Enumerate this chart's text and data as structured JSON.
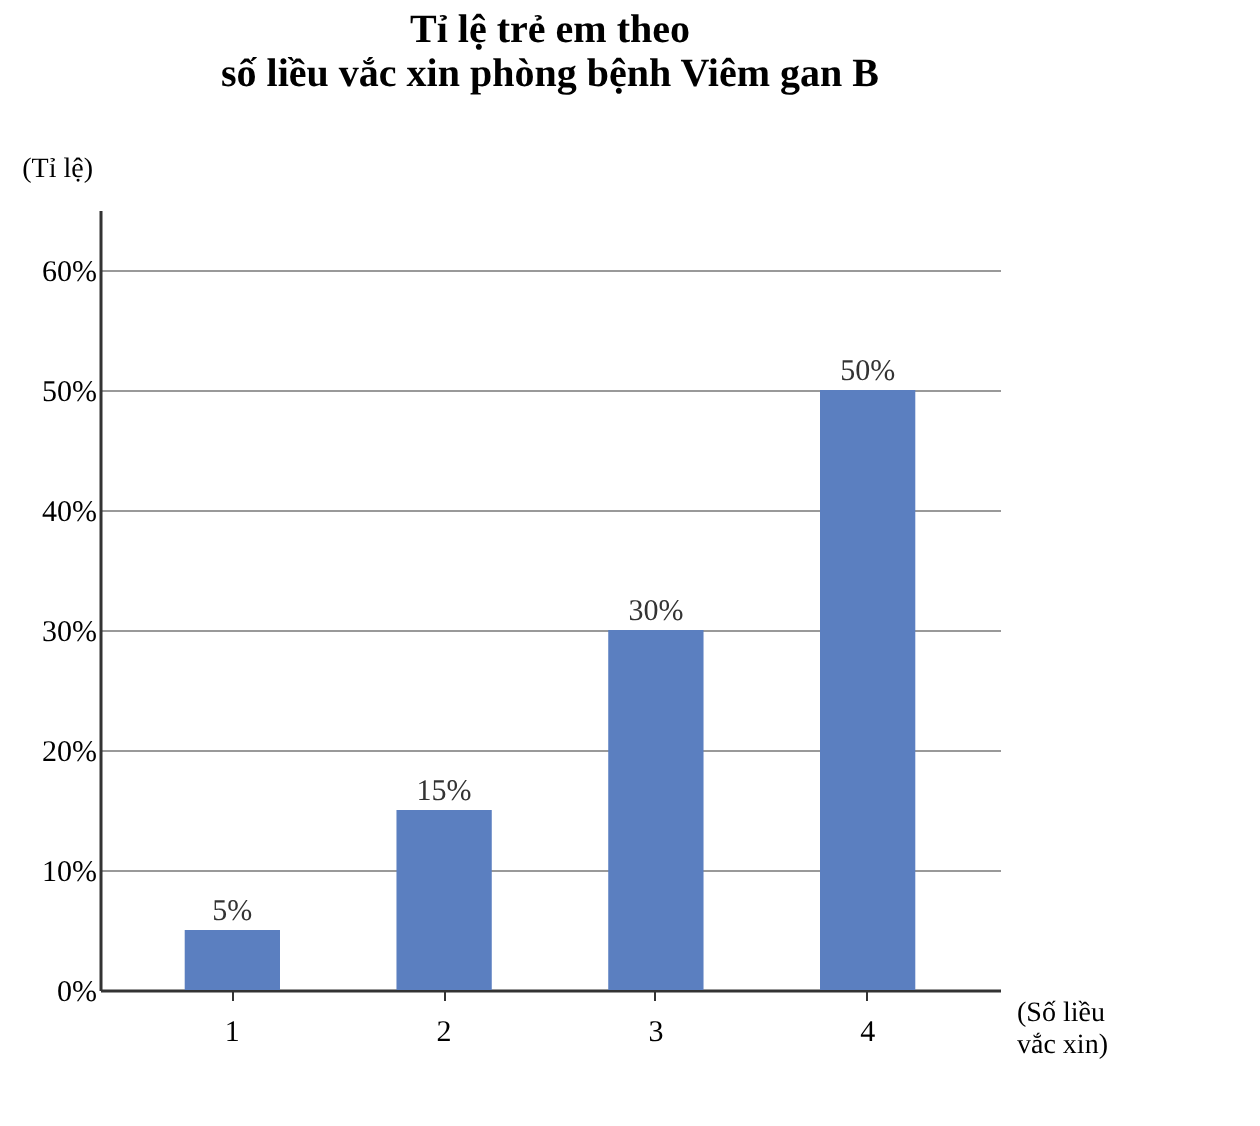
{
  "chart_data": {
    "type": "bar",
    "title": [
      "Tỉ lệ trẻ em theo",
      "số liều vắc xin phòng bệnh Viêm gan B"
    ],
    "xlabel": [
      "(Số liều",
      "vắc xin)"
    ],
    "ylabel": "(Tỉ lệ)",
    "categories": [
      "1",
      "2",
      "3",
      "4"
    ],
    "values": [
      5,
      15,
      30,
      50
    ],
    "value_labels": [
      "5%",
      "15%",
      "30%",
      "50%"
    ],
    "color": "#5b7fc0",
    "ylim": [
      0,
      65
    ],
    "yticks": [
      {
        "value": 0,
        "label": "0%"
      },
      {
        "value": 10,
        "label": "10%"
      },
      {
        "value": 20,
        "label": "20%"
      },
      {
        "value": 30,
        "label": "30%"
      },
      {
        "value": 40,
        "label": "40%"
      },
      {
        "value": 50,
        "label": "50%"
      },
      {
        "value": 60,
        "label": "60%"
      }
    ],
    "grid": "y"
  }
}
